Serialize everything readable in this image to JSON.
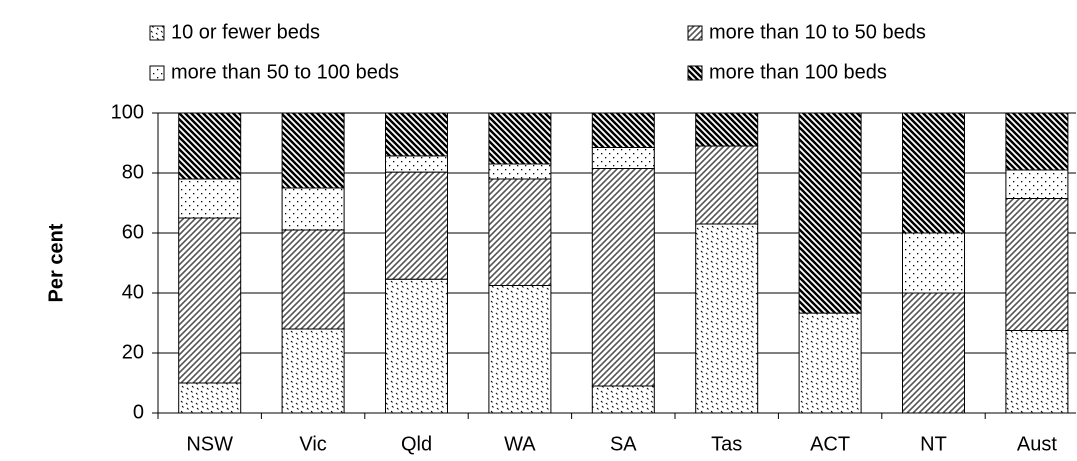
{
  "chart_data": {
    "type": "stacked_bar",
    "y_label": "Per cent",
    "categories": [
      "NSW",
      "Vic",
      "Qld",
      "WA",
      "SA",
      "Tas",
      "ACT",
      "NT",
      "Aust"
    ],
    "series": [
      {
        "name": "10 or fewer beds",
        "pattern": "dots",
        "values": [
          10,
          28,
          44.6,
          42.5,
          9,
          63,
          33.3,
          0,
          27.5
        ]
      },
      {
        "name": "more than 10 to 50 beds",
        "pattern": "diagonal",
        "values": [
          55,
          33,
          35.7,
          35.5,
          72.5,
          26,
          0,
          40,
          44
        ]
      },
      {
        "name": "more than 50 to 100 beds",
        "pattern": "fine-dots",
        "values": [
          13,
          14,
          5.4,
          5,
          7,
          0,
          0,
          20,
          9.5
        ]
      },
      {
        "name": "more than 100 beds",
        "pattern": "dense-diagonal",
        "values": [
          22,
          25,
          14.3,
          17,
          11.5,
          11,
          66.7,
          40,
          19
        ]
      }
    ],
    "ylim": [
      0,
      100
    ],
    "yticks": [
      0,
      20,
      40,
      60,
      80,
      100
    ],
    "grid": true
  }
}
